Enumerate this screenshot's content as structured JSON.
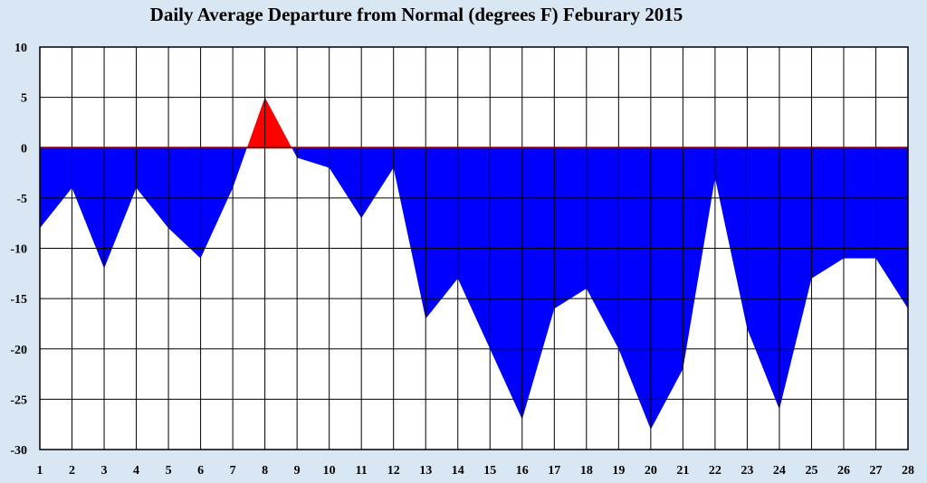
{
  "chart_data": {
    "type": "area",
    "title": "Daily Average Departure from Normal (degrees F) Feburary 2015",
    "xlabel": "",
    "ylabel": "",
    "categories": [
      "1",
      "2",
      "3",
      "4",
      "5",
      "6",
      "7",
      "8",
      "9",
      "10",
      "11",
      "12",
      "13",
      "14",
      "15",
      "16",
      "17",
      "18",
      "19",
      "20",
      "21",
      "22",
      "23",
      "24",
      "25",
      "26",
      "27",
      "28"
    ],
    "x": [
      1,
      2,
      3,
      4,
      5,
      6,
      7,
      8,
      9,
      10,
      11,
      12,
      13,
      14,
      15,
      16,
      17,
      18,
      19,
      20,
      21,
      22,
      23,
      24,
      25,
      26,
      27,
      28
    ],
    "values": [
      -8,
      -4,
      -12,
      -4,
      -8,
      -11,
      -4,
      5,
      -1,
      -2,
      -7,
      -2,
      -17,
      -13,
      -20,
      -27,
      -16,
      -14,
      -20,
      -28,
      -22,
      -3,
      -18,
      -26,
      -13,
      -11,
      -11,
      -16
    ],
    "ylim": [
      -30,
      10
    ],
    "yticks": [
      10,
      5,
      0,
      -5,
      -10,
      -15,
      -20,
      -25,
      -30
    ],
    "grid": true,
    "colors": {
      "positive": "#ff0000",
      "negative": "#0000ff",
      "zero_line": "#8b0000",
      "plot_bg": "#ffffff",
      "page_bg": "#d9e6f4"
    }
  }
}
